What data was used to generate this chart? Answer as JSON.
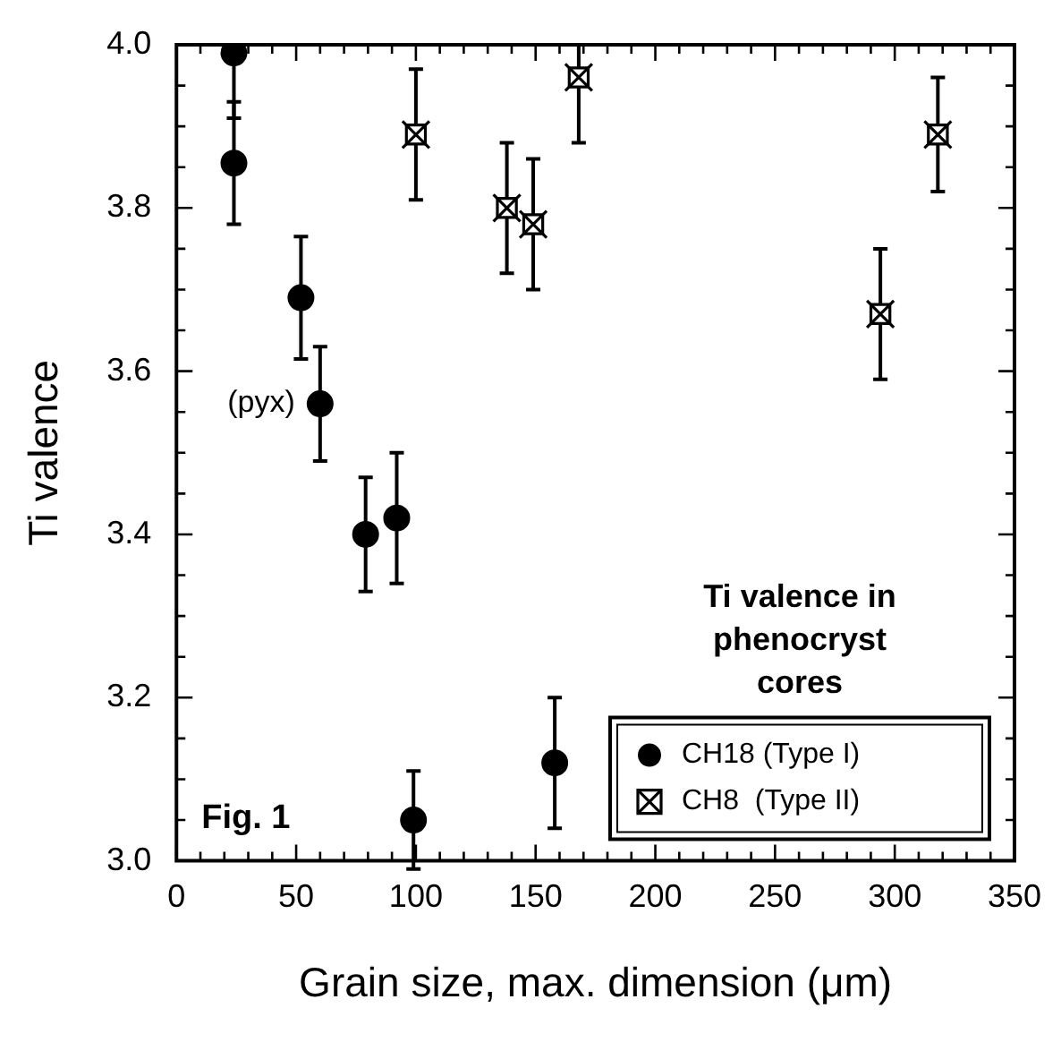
{
  "chart_data": {
    "type": "scatter",
    "xlabel": "Grain size, max. dimension (μm)",
    "ylabel": "Ti valence",
    "legend_title": "Ti valence in phenocryst cores",
    "legend": "bottom right",
    "grid": false,
    "xlim": [
      0,
      350
    ],
    "ylim": [
      3.0,
      4.0
    ],
    "xticks": [
      0,
      {
        "value": 10,
        "label": null
      },
      {
        "value": 20,
        "label": null
      },
      {
        "value": 30,
        "label": null
      },
      {
        "value": 40,
        "label": null
      },
      50,
      {
        "value": 60,
        "label": null
      },
      {
        "value": 70,
        "label": null
      },
      {
        "value": 80,
        "label": null
      },
      {
        "value": 90,
        "label": null
      },
      100,
      {
        "value": 110,
        "label": null
      },
      {
        "value": 120,
        "label": null
      },
      {
        "value": 130,
        "label": null
      },
      {
        "value": 140,
        "label": null
      },
      150,
      {
        "value": 160,
        "label": null
      },
      {
        "value": 170,
        "label": null
      },
      {
        "value": 180,
        "label": null
      },
      {
        "value": 190,
        "label": null
      },
      200,
      {
        "value": 210,
        "label": null
      },
      {
        "value": 220,
        "label": null
      },
      {
        "value": 230,
        "label": null
      },
      {
        "value": 240,
        "label": null
      },
      250,
      {
        "value": 260,
        "label": null
      },
      {
        "value": 270,
        "label": null
      },
      {
        "value": 280,
        "label": null
      },
      {
        "value": 290,
        "label": null
      },
      300,
      {
        "value": 310,
        "label": null
      },
      {
        "value": 320,
        "label": null
      },
      {
        "value": 330,
        "label": null
      },
      {
        "value": 340,
        "label": null
      },
      350
    ],
    "yticks": [
      {
        "value": 3.0,
        "label": "3.0"
      },
      {
        "value": 3.05,
        "label": null
      },
      {
        "value": 3.1,
        "label": null
      },
      {
        "value": 3.15,
        "label": null
      },
      {
        "value": 3.2,
        "label": "3.2"
      },
      {
        "value": 3.25,
        "label": null
      },
      {
        "value": 3.3,
        "label": null
      },
      {
        "value": 3.35,
        "label": null
      },
      {
        "value": 3.4,
        "label": "3.4"
      },
      {
        "value": 3.45,
        "label": null
      },
      {
        "value": 3.5,
        "label": null
      },
      {
        "value": 3.55,
        "label": null
      },
      {
        "value": 3.6,
        "label": "3.6"
      },
      {
        "value": 3.65,
        "label": null
      },
      {
        "value": 3.7,
        "label": null
      },
      {
        "value": 3.75,
        "label": null
      },
      {
        "value": 3.8,
        "label": "3.8"
      },
      {
        "value": 3.85,
        "label": null
      },
      {
        "value": 3.9,
        "label": null
      },
      {
        "value": 3.95,
        "label": null
      },
      {
        "value": 4.0,
        "label": "4.0"
      }
    ],
    "series": [
      {
        "name": "CH18 (Type I)",
        "color": "#000000",
        "marker": "circle",
        "x": [
          24,
          24,
          52,
          60,
          79,
          92,
          99,
          158
        ],
        "values": [
          3.99,
          3.855,
          3.69,
          3.56,
          3.4,
          3.42,
          3.05,
          3.12
        ],
        "errors": [
          [
            3.91,
            4.0
          ],
          0.075,
          0.075,
          0.07,
          0.07,
          0.08,
          0.06,
          0.08
        ]
      },
      {
        "name": "CH8  (Type II)",
        "color": "#000000",
        "marker": "square",
        "x": [
          100,
          138,
          149,
          168,
          294,
          318
        ],
        "values": [
          3.89,
          3.8,
          3.78,
          3.96,
          3.67,
          3.89
        ],
        "errors": [
          0.08,
          0.08,
          0.08,
          [
            3.88,
            4.0
          ],
          0.08,
          0.07
        ]
      }
    ],
    "annotations": [
      {
        "text": "(pyx)",
        "x": 60,
        "y": 3.56
      },
      "Fig. 1"
    ]
  }
}
